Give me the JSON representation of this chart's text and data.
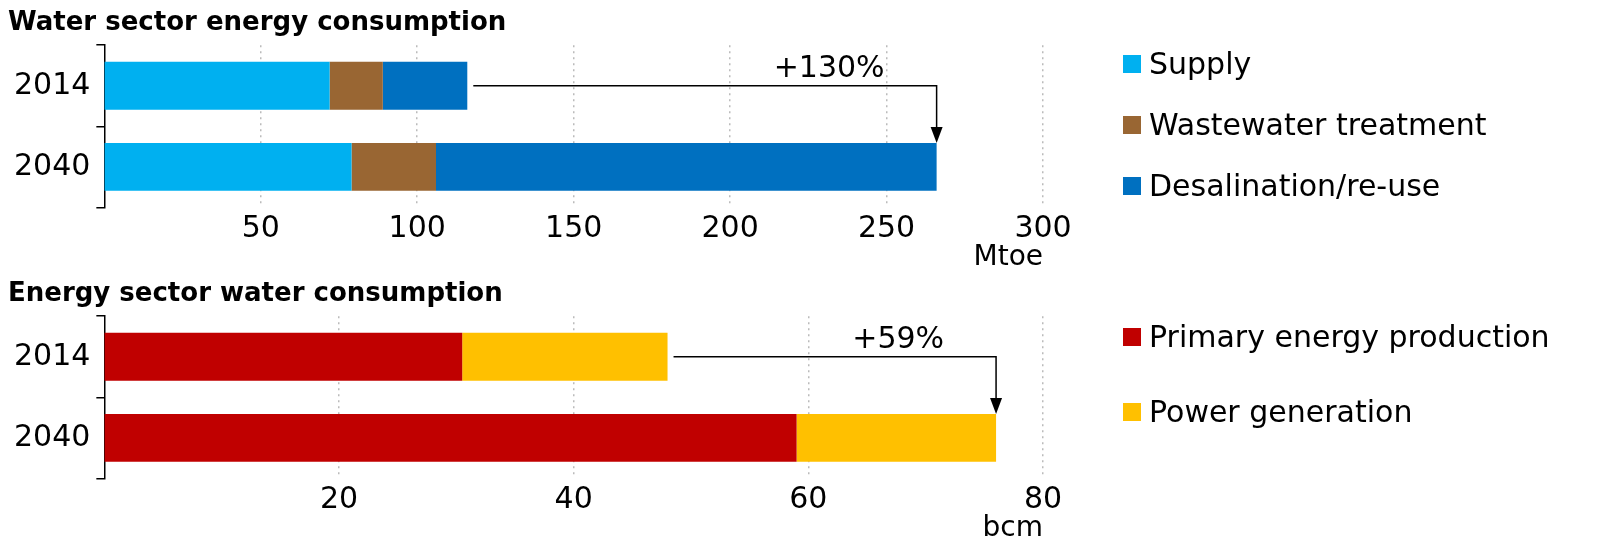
{
  "chart_data": [
    {
      "type": "bar",
      "title": "Water sector energy consumption",
      "xlabel": "Mtoe",
      "orientation": "horizontal",
      "stacked": true,
      "categories": [
        "2014",
        "2040"
      ],
      "series": [
        {
          "name": "Supply",
          "color": "#00b0f0",
          "values": [
            72,
            79
          ]
        },
        {
          "name": "Wastewater treatment",
          "color": "#996633",
          "values": [
            17,
            27
          ]
        },
        {
          "name": "Desalination/re-use",
          "color": "#0070c0",
          "values": [
            27,
            160
          ]
        }
      ],
      "xlim": [
        0,
        300
      ],
      "xticks": [
        50,
        100,
        150,
        200,
        250,
        300
      ],
      "grid": "x",
      "legend": "right",
      "annotations": [
        "+130%"
      ]
    },
    {
      "type": "bar",
      "title": "Energy sector water consumption",
      "xlabel": "bcm",
      "orientation": "horizontal",
      "stacked": true,
      "categories": [
        "2014",
        "2040"
      ],
      "series": [
        {
          "name": "Primary energy production",
          "color": "#c00000",
          "values": [
            30.5,
            59
          ]
        },
        {
          "name": "Power generation",
          "color": "#ffc000",
          "values": [
            17.5,
            17
          ]
        }
      ],
      "xlim": [
        0,
        80
      ],
      "xticks": [
        20,
        40,
        60,
        80
      ],
      "grid": "x",
      "legend": "right",
      "annotations": [
        "+59%"
      ]
    }
  ]
}
